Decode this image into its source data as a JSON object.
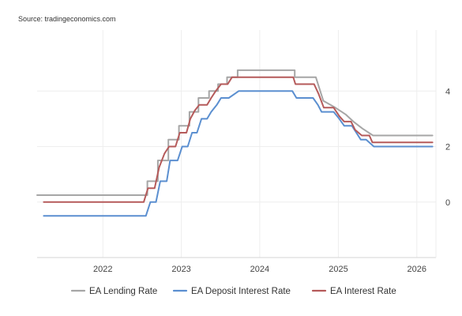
{
  "source_text": "Source: tradingeconomics.com",
  "chart_data": {
    "type": "line",
    "x_ticks": [
      "2022",
      "2023",
      "2024",
      "2025",
      "2026"
    ],
    "y_ticks": [
      "0",
      "2",
      "4"
    ],
    "xlim": [
      "2021-03-01",
      "2026-03-31"
    ],
    "ylim": [
      -2.0,
      6.2
    ],
    "grid": true,
    "legend_position": "bottom",
    "series": [
      {
        "name": "EA Lending Rate",
        "color": "#a6a6a6",
        "points": [
          [
            "2021-03-01",
            0.25
          ],
          [
            "2022-07-27",
            0.25
          ],
          [
            "2022-07-27",
            0.75
          ],
          [
            "2022-09-14",
            0.75
          ],
          [
            "2022-09-14",
            1.5
          ],
          [
            "2022-11-02",
            1.5
          ],
          [
            "2022-11-02",
            2.25
          ],
          [
            "2022-12-21",
            2.25
          ],
          [
            "2022-12-21",
            2.75
          ],
          [
            "2023-02-08",
            2.75
          ],
          [
            "2023-02-08",
            3.25
          ],
          [
            "2023-03-22",
            3.25
          ],
          [
            "2023-03-22",
            3.75
          ],
          [
            "2023-05-10",
            3.75
          ],
          [
            "2023-05-10",
            4.0
          ],
          [
            "2023-06-21",
            4.0
          ],
          [
            "2023-06-21",
            4.25
          ],
          [
            "2023-08-02",
            4.25
          ],
          [
            "2023-08-02",
            4.5
          ],
          [
            "2023-09-20",
            4.5
          ],
          [
            "2023-09-20",
            4.75
          ],
          [
            "2024-06-12",
            4.75
          ],
          [
            "2024-06-12",
            4.5
          ],
          [
            "2024-09-18",
            4.5
          ],
          [
            "2024-10-23",
            3.65
          ],
          [
            "2024-12-18",
            3.4
          ],
          [
            "2025-02-05",
            3.15
          ],
          [
            "2025-03-12",
            2.9
          ],
          [
            "2025-04-23",
            2.65
          ],
          [
            "2025-06-11",
            2.4
          ],
          [
            "2026-03-15",
            2.4
          ]
        ]
      },
      {
        "name": "EA Deposit Interest Rate",
        "color": "#5b8fd0",
        "points": [
          [
            "2021-04-01",
            -0.5
          ],
          [
            "2022-07-20",
            -0.5
          ],
          [
            "2022-08-10",
            0.0
          ],
          [
            "2022-09-05",
            0.0
          ],
          [
            "2022-09-25",
            0.75
          ],
          [
            "2022-10-25",
            0.75
          ],
          [
            "2022-11-10",
            1.5
          ],
          [
            "2022-12-15",
            1.5
          ],
          [
            "2023-01-05",
            2.0
          ],
          [
            "2023-01-31",
            2.0
          ],
          [
            "2023-02-20",
            2.5
          ],
          [
            "2023-03-15",
            2.5
          ],
          [
            "2023-04-05",
            3.0
          ],
          [
            "2023-05-01",
            3.0
          ],
          [
            "2023-05-20",
            3.25
          ],
          [
            "2023-06-15",
            3.5
          ],
          [
            "2023-07-05",
            3.75
          ],
          [
            "2023-08-10",
            3.75
          ],
          [
            "2023-09-25",
            4.0
          ],
          [
            "2024-06-01",
            4.0
          ],
          [
            "2024-06-20",
            3.75
          ],
          [
            "2024-09-05",
            3.75
          ],
          [
            "2024-09-28",
            3.5
          ],
          [
            "2024-10-15",
            3.25
          ],
          [
            "2024-12-10",
            3.25
          ],
          [
            "2025-01-05",
            3.0
          ],
          [
            "2025-01-28",
            2.75
          ],
          [
            "2025-03-05",
            2.75
          ],
          [
            "2025-04-15",
            2.25
          ],
          [
            "2025-05-10",
            2.25
          ],
          [
            "2025-06-15",
            2.0
          ],
          [
            "2026-03-15",
            2.0
          ]
        ]
      },
      {
        "name": "EA Interest Rate",
        "color": "#b55a5a",
        "points": [
          [
            "2021-04-01",
            0.0
          ],
          [
            "2022-07-10",
            0.0
          ],
          [
            "2022-07-30",
            0.5
          ],
          [
            "2022-08-30",
            0.5
          ],
          [
            "2022-09-20",
            1.25
          ],
          [
            "2022-10-15",
            1.75
          ],
          [
            "2022-11-05",
            2.0
          ],
          [
            "2022-12-05",
            2.0
          ],
          [
            "2022-12-25",
            2.5
          ],
          [
            "2023-01-25",
            2.5
          ],
          [
            "2023-02-12",
            3.0
          ],
          [
            "2023-03-05",
            3.3
          ],
          [
            "2023-03-25",
            3.5
          ],
          [
            "2023-05-01",
            3.5
          ],
          [
            "2023-05-20",
            3.75
          ],
          [
            "2023-06-10",
            4.0
          ],
          [
            "2023-07-05",
            4.25
          ],
          [
            "2023-08-05",
            4.25
          ],
          [
            "2023-08-25",
            4.5
          ],
          [
            "2024-06-05",
            4.5
          ],
          [
            "2024-06-15",
            4.25
          ],
          [
            "2024-09-10",
            4.25
          ],
          [
            "2024-10-01",
            3.9
          ],
          [
            "2024-10-25",
            3.4
          ],
          [
            "2024-12-10",
            3.4
          ],
          [
            "2025-01-05",
            3.1
          ],
          [
            "2025-01-28",
            2.9
          ],
          [
            "2025-03-01",
            2.9
          ],
          [
            "2025-03-20",
            2.6
          ],
          [
            "2025-04-20",
            2.4
          ],
          [
            "2025-05-25",
            2.4
          ],
          [
            "2025-06-08",
            2.15
          ],
          [
            "2026-03-15",
            2.15
          ]
        ]
      }
    ]
  }
}
